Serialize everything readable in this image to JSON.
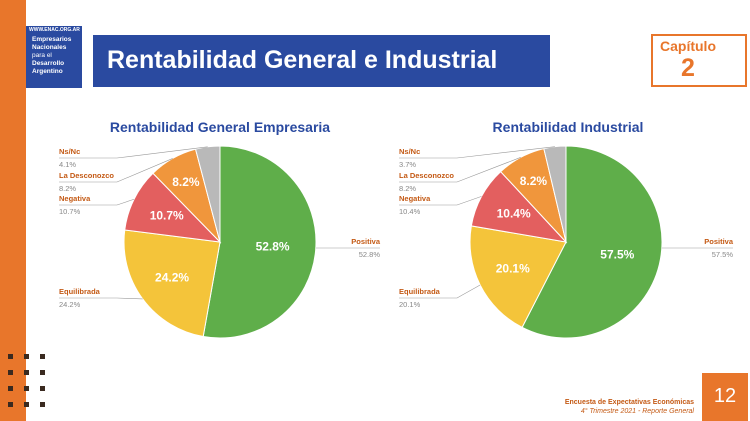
{
  "logo": {
    "url": "WWW.ENAC.ORG.AR",
    "lines": [
      "Empresarios",
      "Nacionales",
      "para el",
      "Desarrollo",
      "Argentino"
    ]
  },
  "header": {
    "title": "Rentabilidad General e Industrial",
    "chapter_label": "Capítulo",
    "chapter_number": "2"
  },
  "footer": {
    "line1": "Encuesta de Expectativas Económicas",
    "line2": "4° Trimestre 2021 - Reporte General",
    "page": "12"
  },
  "colors": {
    "brand_blue": "#2a4aa0",
    "accent_orange": "#e8762b",
    "positiva": "#5fae4a",
    "equilibrada": "#f4c43a",
    "negativa": "#e35f5f",
    "desconozco": "#f0963c",
    "nsnc": "#b9b9b9"
  },
  "chart_data": [
    {
      "type": "pie",
      "title": "Rentabilidad General Empresaria",
      "slices": [
        {
          "label": "Positiva",
          "value": 52.8,
          "display": "52.8%",
          "outside_value": "52.8%",
          "color": "#5fae4a"
        },
        {
          "label": "Equilibrada",
          "value": 24.2,
          "display": "24.2%",
          "outside_value": "24.2%",
          "color": "#f4c43a"
        },
        {
          "label": "Negativa",
          "value": 10.7,
          "display": "10.7%",
          "outside_value": "10.7%",
          "color": "#e35f5f"
        },
        {
          "label": "La Desconozco",
          "value": 8.2,
          "display": "8.2%",
          "outside_value": "8.2%",
          "color": "#f0963c"
        },
        {
          "label": "Ns/Nc",
          "value": 4.1,
          "display": "",
          "outside_value": "4.1%",
          "color": "#b9b9b9"
        }
      ]
    },
    {
      "type": "pie",
      "title": "Rentabilidad Industrial",
      "slices": [
        {
          "label": "Positiva",
          "value": 57.5,
          "display": "57.5%",
          "outside_value": "57.5%",
          "color": "#5fae4a"
        },
        {
          "label": "Equilibrada",
          "value": 20.1,
          "display": "20.1%",
          "outside_value": "20.1%",
          "color": "#f4c43a"
        },
        {
          "label": "Negativa",
          "value": 10.4,
          "display": "10.4%",
          "outside_value": "10.4%",
          "color": "#e35f5f"
        },
        {
          "label": "La Desconozco",
          "value": 8.2,
          "display": "8.2%",
          "outside_value": "8.2%",
          "color": "#f0963c"
        },
        {
          "label": "Ns/Nc",
          "value": 3.7,
          "display": "",
          "outside_value": "3.7%",
          "color": "#b9b9b9"
        }
      ]
    }
  ]
}
